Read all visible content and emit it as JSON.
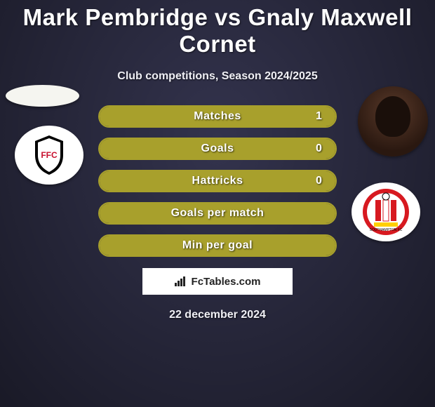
{
  "background_color": "#33334d",
  "player1": "Mark Pembridge",
  "player2": "Gnaly Maxwell Cornet",
  "title_vs": "vs",
  "subtitle": "Club competitions, Season 2024/2025",
  "date": "22 december 2024",
  "watermark": "FcTables.com",
  "accent_color": "#a8a02c",
  "fill_color": "#a8a02c",
  "border_color": "#a8a02c",
  "title_fontsize": 33,
  "subtitle_fontsize": 16,
  "row_fontsize": 16,
  "rows": [
    {
      "label": "Matches",
      "left": "",
      "right": "1",
      "left_pct": 0,
      "right_pct": 100
    },
    {
      "label": "Goals",
      "left": "",
      "right": "0",
      "left_pct": 0,
      "right_pct": 100
    },
    {
      "label": "Hattricks",
      "left": "",
      "right": "0",
      "left_pct": 0,
      "right_pct": 100
    },
    {
      "label": "Goals per match",
      "left": "",
      "right": "",
      "left_pct": 0,
      "right_pct": 100
    },
    {
      "label": "Min per goal",
      "left": "",
      "right": "",
      "left_pct": 0,
      "right_pct": 100
    }
  ],
  "club1_name": "Fulham",
  "club2_name": "Southampton",
  "club1_colors": {
    "shield": "#000000",
    "inner": "#ffffff",
    "accent": "#c8102e"
  },
  "club2_colors": {
    "outer": "#d71920",
    "stripe1": "#ffffff",
    "stripe2": "#ffcf00",
    "center": "#ffffff",
    "text": "#000000"
  }
}
